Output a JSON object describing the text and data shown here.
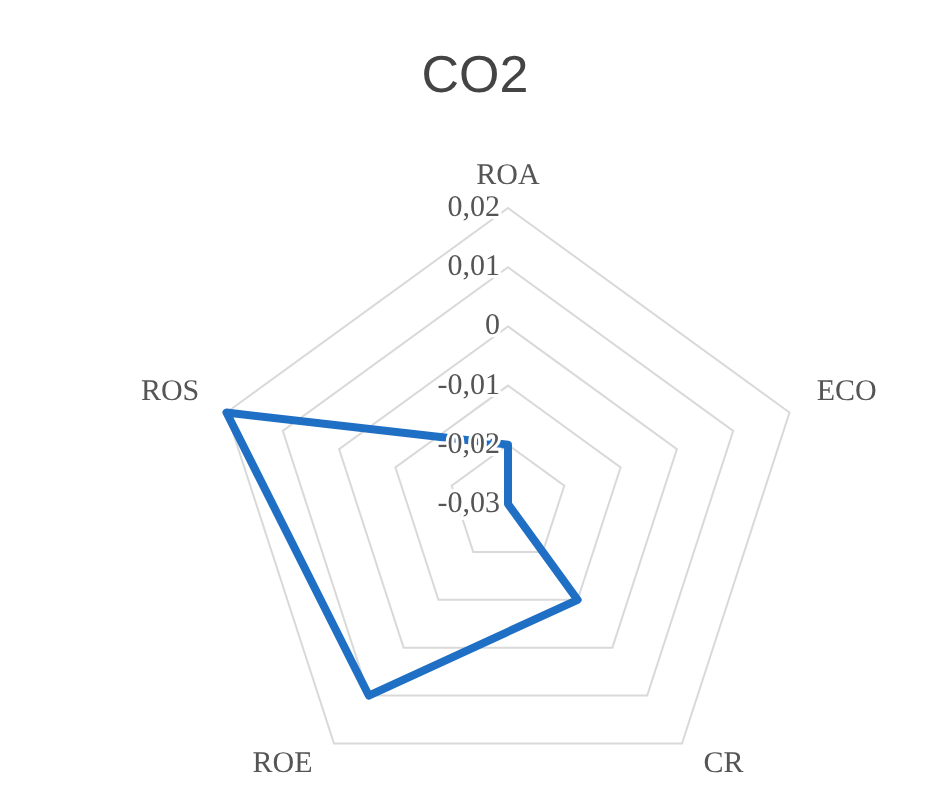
{
  "chart_data": {
    "type": "radar",
    "title": "CO2",
    "categories": [
      "ROA",
      "ECO",
      "CR",
      "ROE",
      "ROS"
    ],
    "series": [
      {
        "color": "#1f6fc4",
        "values": [
          -0.02,
          -0.03,
          -0.01,
          0.01,
          0.02
        ]
      }
    ],
    "ylim": [
      -0.03,
      0.02
    ],
    "yticks": [
      {
        "value": -0.03,
        "label": "-0,03"
      },
      {
        "value": -0.02,
        "label": "-0,02"
      },
      {
        "value": -0.01,
        "label": "-0,01"
      },
      {
        "value": 0,
        "label": "0"
      },
      {
        "value": 0.01,
        "label": "0,01"
      },
      {
        "value": 0.02,
        "label": "0,02"
      }
    ],
    "grid": true,
    "legend": false,
    "marker": "none"
  }
}
